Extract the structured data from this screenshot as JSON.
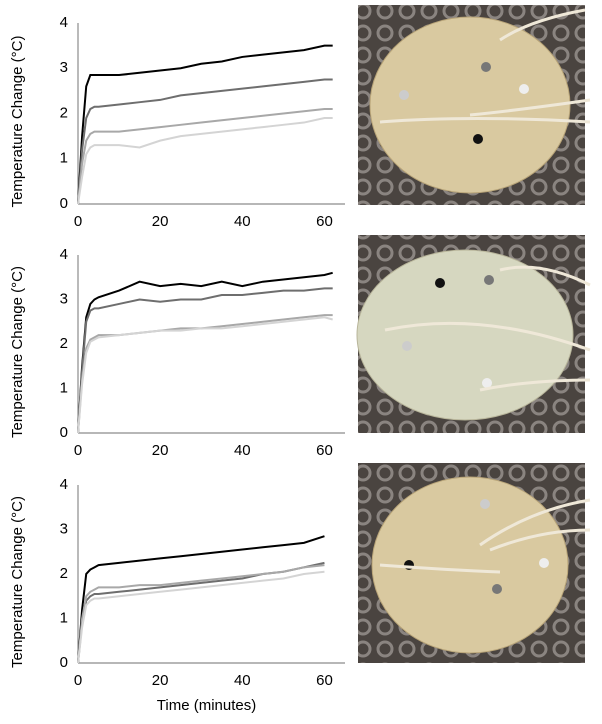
{
  "chart_data": [
    {
      "type": "line",
      "ylabel": "Temperature Change (°C)",
      "x": [
        0,
        1,
        2,
        3,
        4,
        5,
        10,
        15,
        20,
        25,
        30,
        35,
        40,
        45,
        50,
        55,
        60,
        62
      ],
      "series": [
        {
          "color": "#000000",
          "values": [
            0,
            1.5,
            2.6,
            2.85,
            2.85,
            2.85,
            2.85,
            2.9,
            2.95,
            3.0,
            3.1,
            3.15,
            3.25,
            3.3,
            3.35,
            3.4,
            3.5,
            3.5
          ]
        },
        {
          "color": "#6e6e6e",
          "values": [
            0,
            1.2,
            1.9,
            2.1,
            2.15,
            2.15,
            2.2,
            2.25,
            2.3,
            2.4,
            2.45,
            2.5,
            2.55,
            2.6,
            2.65,
            2.7,
            2.75,
            2.75
          ]
        },
        {
          "color": "#a8a8a8",
          "values": [
            0,
            0.9,
            1.4,
            1.55,
            1.6,
            1.6,
            1.6,
            1.65,
            1.7,
            1.75,
            1.8,
            1.85,
            1.9,
            1.95,
            2.0,
            2.05,
            2.1,
            2.1
          ]
        },
        {
          "color": "#d4d4d4",
          "values": [
            0,
            0.6,
            1.1,
            1.25,
            1.3,
            1.3,
            1.3,
            1.25,
            1.4,
            1.5,
            1.55,
            1.6,
            1.65,
            1.7,
            1.75,
            1.8,
            1.9,
            1.9
          ]
        }
      ],
      "xlim": [
        0,
        65
      ],
      "ylim": [
        0,
        4
      ],
      "xticks": [
        0,
        20,
        40,
        60
      ],
      "yticks": [
        0,
        1,
        2,
        3,
        4
      ]
    },
    {
      "type": "line",
      "ylabel": "Temperature Change (°C)",
      "x": [
        0,
        1,
        2,
        3,
        4,
        5,
        10,
        15,
        20,
        25,
        30,
        35,
        40,
        45,
        50,
        55,
        60,
        62
      ],
      "series": [
        {
          "color": "#000000",
          "values": [
            0,
            1.5,
            2.6,
            2.9,
            3.0,
            3.05,
            3.2,
            3.4,
            3.3,
            3.35,
            3.3,
            3.4,
            3.3,
            3.4,
            3.45,
            3.5,
            3.55,
            3.6
          ]
        },
        {
          "color": "#6e6e6e",
          "values": [
            0,
            1.4,
            2.5,
            2.75,
            2.8,
            2.8,
            2.9,
            3.0,
            2.95,
            3.0,
            3.0,
            3.1,
            3.1,
            3.15,
            3.2,
            3.2,
            3.25,
            3.25
          ]
        },
        {
          "color": "#a8a8a8",
          "values": [
            0,
            1.2,
            1.9,
            2.1,
            2.15,
            2.2,
            2.2,
            2.25,
            2.3,
            2.35,
            2.35,
            2.4,
            2.45,
            2.5,
            2.55,
            2.6,
            2.65,
            2.65
          ]
        },
        {
          "color": "#d4d4d4",
          "values": [
            0,
            1.1,
            1.8,
            2.05,
            2.1,
            2.15,
            2.2,
            2.25,
            2.3,
            2.3,
            2.35,
            2.35,
            2.4,
            2.45,
            2.5,
            2.55,
            2.6,
            2.55
          ]
        }
      ],
      "xlim": [
        0,
        65
      ],
      "ylim": [
        0,
        4
      ],
      "xticks": [
        0,
        20,
        40,
        60
      ],
      "yticks": [
        0,
        1,
        2,
        3,
        4
      ]
    },
    {
      "type": "line",
      "ylabel": "Temperature Change (°C)",
      "xlabel": "Time (minutes)",
      "x": [
        0,
        1,
        2,
        3,
        4,
        5,
        10,
        15,
        20,
        25,
        30,
        35,
        40,
        45,
        50,
        55,
        60
      ],
      "series": [
        {
          "color": "#000000",
          "values": [
            0,
            1.2,
            2.0,
            2.1,
            2.15,
            2.2,
            2.25,
            2.3,
            2.35,
            2.4,
            2.45,
            2.5,
            2.55,
            2.6,
            2.65,
            2.7,
            2.85
          ]
        },
        {
          "color": "#6e6e6e",
          "values": [
            0,
            0.9,
            1.4,
            1.5,
            1.55,
            1.55,
            1.6,
            1.65,
            1.7,
            1.75,
            1.8,
            1.85,
            1.9,
            2.0,
            2.05,
            2.15,
            2.25
          ]
        },
        {
          "color": "#a8a8a8",
          "values": [
            0,
            1.0,
            1.5,
            1.6,
            1.65,
            1.7,
            1.7,
            1.75,
            1.75,
            1.8,
            1.85,
            1.9,
            1.95,
            2.0,
            2.05,
            2.15,
            2.2
          ]
        },
        {
          "color": "#d4d4d4",
          "values": [
            0,
            0.8,
            1.3,
            1.4,
            1.45,
            1.45,
            1.5,
            1.55,
            1.6,
            1.65,
            1.7,
            1.75,
            1.8,
            1.85,
            1.9,
            2.0,
            2.05
          ]
        }
      ],
      "xlim": [
        0,
        65
      ],
      "ylim": [
        0,
        4
      ],
      "xticks": [
        0,
        20,
        40,
        60
      ],
      "yticks": [
        0,
        1,
        2,
        3,
        4
      ]
    }
  ]
}
